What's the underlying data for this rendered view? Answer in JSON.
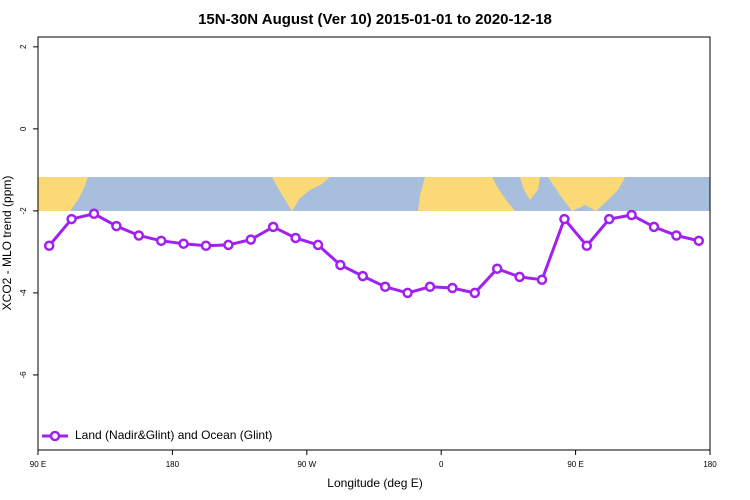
{
  "chart_data": {
    "type": "line",
    "title": "15N-30N August (Ver 10)   2015-01-01 to 2020-12-18",
    "x_label": "Longitude (deg E)",
    "y_label": "XCO2 - MLO trend (ppm)",
    "x": [
      97.5,
      112.5,
      127.5,
      142.5,
      157.5,
      172.5,
      187.5,
      202.5,
      217.5,
      232.5,
      247.5,
      262.5,
      277.5,
      292.5,
      307.5,
      322.5,
      337.5,
      352.5,
      367.5,
      382.5,
      397.5,
      412.5,
      427.5,
      442.5,
      457.5,
      472.5,
      487.5,
      502.5,
      517.5,
      532.5
    ],
    "series": [
      {
        "name": "Land (Nadir&Glint) and Ocean (Glint)",
        "color": "#a020f0",
        "values": [
          -2.85,
          -2.2,
          -2.07,
          -2.37,
          -2.6,
          -2.73,
          -2.8,
          -2.85,
          -2.83,
          -2.7,
          -2.39,
          -2.66,
          -2.83,
          -3.32,
          -3.59,
          -3.85,
          -4.0,
          -3.85,
          -3.88,
          -4.0,
          -3.41,
          -3.61,
          -3.68,
          -2.2,
          -2.85,
          -2.2,
          -2.1,
          -2.39,
          -2.6,
          -2.73
        ]
      }
    ],
    "xlim": [
      90,
      540
    ],
    "xticks": [
      {
        "value": 90,
        "label": "90 E"
      },
      180,
      {
        "value": 270,
        "label": "90 W"
      },
      {
        "value": 360,
        "label": "0"
      },
      {
        "value": 450,
        "label": "90 E"
      },
      {
        "value": 540,
        "label": "180"
      }
    ],
    "ylim": [
      -7.83,
      2.24
    ],
    "yticks": [
      2,
      0,
      -2,
      -4,
      -6
    ],
    "legend": "bottomleft"
  }
}
